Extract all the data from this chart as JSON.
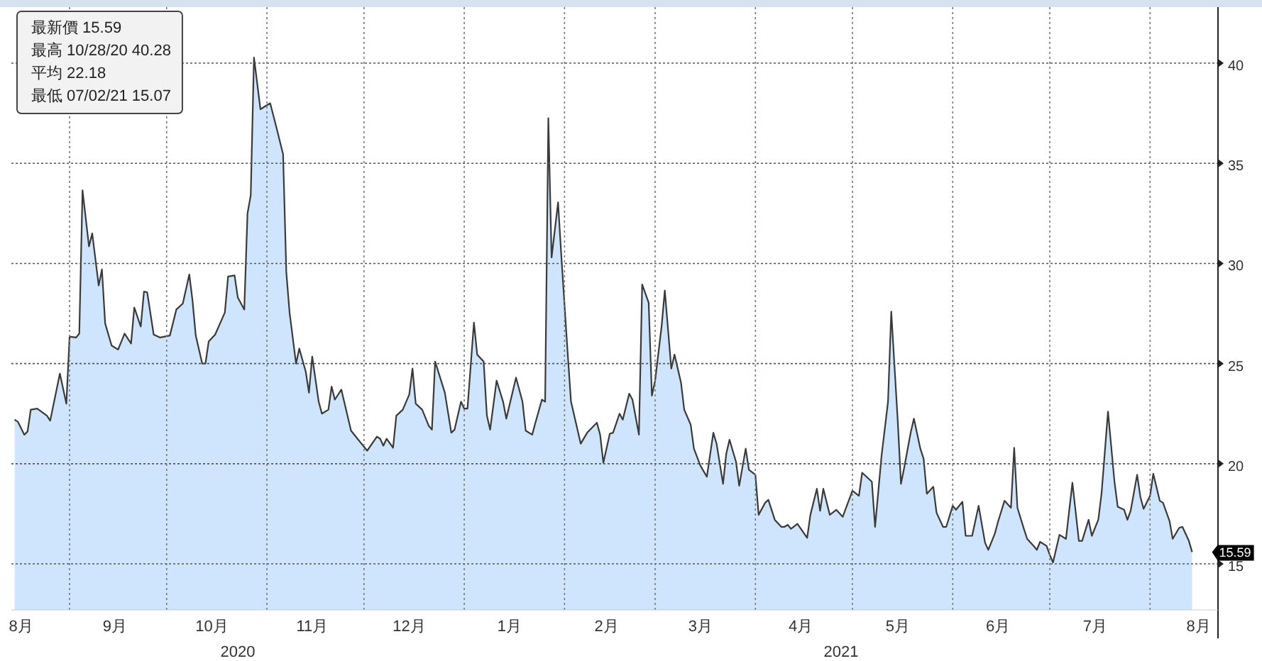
{
  "chart_data": {
    "type": "area",
    "grid": true,
    "xlim": [
      "2020-08-14",
      "2021-08-22"
    ],
    "ylim": [
      12.7,
      42.8
    ],
    "yticks": [
      15,
      20,
      25,
      30,
      35,
      40
    ],
    "xticks": [
      {
        "value": "2020-08-17",
        "label": "8月"
      },
      {
        "value": "2020-09-01",
        "label": null
      },
      {
        "value": "2020-09-15",
        "label": "9月"
      },
      {
        "value": "2020-10-01",
        "label": null
      },
      {
        "value": "2020-10-15",
        "label": "10月"
      },
      {
        "value": "2020-11-01",
        "label": null
      },
      {
        "value": "2020-11-15",
        "label": "11月"
      },
      {
        "value": "2020-12-01",
        "label": null
      },
      {
        "value": "2020-12-15",
        "label": "12月"
      },
      {
        "value": "2021-01-01",
        "label": null
      },
      {
        "value": "2021-01-15",
        "label": "1月"
      },
      {
        "value": "2021-02-01",
        "label": null
      },
      {
        "value": "2021-02-14",
        "label": "2月"
      },
      {
        "value": "2021-03-01",
        "label": null
      },
      {
        "value": "2021-03-15",
        "label": "3月"
      },
      {
        "value": "2021-04-01",
        "label": null
      },
      {
        "value": "2021-04-15",
        "label": "4月"
      },
      {
        "value": "2021-05-01",
        "label": null
      },
      {
        "value": "2021-05-15",
        "label": "5月"
      },
      {
        "value": "2021-06-01",
        "label": null
      },
      {
        "value": "2021-06-15",
        "label": "6月"
      },
      {
        "value": "2021-07-01",
        "label": null
      },
      {
        "value": "2021-07-15",
        "label": "7月"
      },
      {
        "value": "2021-08-01",
        "label": null
      },
      {
        "value": "2021-08-16",
        "label": "8月"
      }
    ],
    "annotations": [
      "最新價 15.59",
      "最高 10/28/20 40.28",
      "平均 22.18",
      "最低 07/02/21 15.07",
      "2020",
      "2021",
      {
        "text": "15.59",
        "x": "2021-08-14",
        "y": 15.59
      }
    ],
    "series": [
      {
        "color": "#cce4fd",
        "x": [
          "2020-08-15",
          "2020-08-16",
          "2020-08-18",
          "2020-08-19",
          "2020-08-20",
          "2020-08-22",
          "2020-08-25",
          "2020-08-26",
          "2020-08-29",
          "2020-08-31",
          "2020-09-01",
          "2020-09-03",
          "2020-09-04",
          "2020-09-05",
          "2020-09-07",
          "2020-09-08",
          "2020-09-10",
          "2020-09-11",
          "2020-09-12",
          "2020-09-14",
          "2020-09-16",
          "2020-09-18",
          "2020-09-20",
          "2020-09-21",
          "2020-09-23",
          "2020-09-24",
          "2020-09-25",
          "2020-09-27",
          "2020-09-29",
          "2020-10-02",
          "2020-10-04",
          "2020-10-06",
          "2020-10-08",
          "2020-10-09",
          "2020-10-10",
          "2020-10-12",
          "2020-10-13",
          "2020-10-14",
          "2020-10-16",
          "2020-10-19",
          "2020-10-20",
          "2020-10-22",
          "2020-10-23",
          "2020-10-25",
          "2020-10-26",
          "2020-10-27",
          "2020-10-28",
          "2020-10-30",
          "2020-11-02",
          "2020-11-04",
          "2020-11-06",
          "2020-11-07",
          "2020-11-08",
          "2020-11-10",
          "2020-11-11",
          "2020-11-13",
          "2020-11-14",
          "2020-11-15",
          "2020-11-17",
          "2020-11-18",
          "2020-11-20",
          "2020-11-21",
          "2020-11-22",
          "2020-11-24",
          "2020-11-27",
          "2020-12-02",
          "2020-12-05",
          "2020-12-06",
          "2020-12-07",
          "2020-12-08",
          "2020-12-10",
          "2020-12-11",
          "2020-12-13",
          "2020-12-15",
          "2020-12-16",
          "2020-12-17",
          "2020-12-19",
          "2020-12-21",
          "2020-12-22",
          "2020-12-23",
          "2020-12-26",
          "2020-12-28",
          "2020-12-29",
          "2020-12-31",
          "2021-01-01",
          "2021-01-02",
          "2021-01-04",
          "2021-01-05",
          "2021-01-07",
          "2021-01-08",
          "2021-01-09",
          "2021-01-11",
          "2021-01-13",
          "2021-01-14",
          "2021-01-17",
          "2021-01-19",
          "2021-01-20",
          "2021-01-22",
          "2021-01-23",
          "2021-01-25",
          "2021-01-26",
          "2021-01-27",
          "2021-01-28",
          "2021-01-30",
          "2021-01-31",
          "2021-02-02",
          "2021-02-03",
          "2021-02-06",
          "2021-02-08",
          "2021-02-11",
          "2021-02-12",
          "2021-02-13",
          "2021-02-15",
          "2021-02-16",
          "2021-02-18",
          "2021-02-19",
          "2021-02-21",
          "2021-02-22",
          "2021-02-24",
          "2021-02-25",
          "2021-02-27",
          "2021-02-28",
          "2021-03-01",
          "2021-03-03",
          "2021-03-04",
          "2021-03-06",
          "2021-03-07",
          "2021-03-09",
          "2021-03-10",
          "2021-03-12",
          "2021-03-13",
          "2021-03-15",
          "2021-03-17",
          "2021-03-19",
          "2021-03-20",
          "2021-03-22",
          "2021-03-23",
          "2021-03-24",
          "2021-03-26",
          "2021-03-27",
          "2021-03-29",
          "2021-03-30",
          "2021-04-01",
          "2021-04-02",
          "2021-04-04",
          "2021-04-05",
          "2021-04-07",
          "2021-04-09",
          "2021-04-10",
          "2021-04-11",
          "2021-04-12",
          "2021-04-14",
          "2021-04-17",
          "2021-04-18",
          "2021-04-20",
          "2021-04-21",
          "2021-04-22",
          "2021-04-24",
          "2021-04-26",
          "2021-04-28",
          "2021-05-01",
          "2021-05-03",
          "2021-05-04",
          "2021-05-07",
          "2021-05-08",
          "2021-05-10",
          "2021-05-12",
          "2021-05-13",
          "2021-05-15",
          "2021-05-16",
          "2021-05-17",
          "2021-05-19",
          "2021-05-20",
          "2021-05-22",
          "2021-05-23",
          "2021-05-24",
          "2021-05-26",
          "2021-05-27",
          "2021-05-29",
          "2021-05-30",
          "2021-06-01",
          "2021-06-02",
          "2021-06-04",
          "2021-06-05",
          "2021-06-07",
          "2021-06-09",
          "2021-06-11",
          "2021-06-12",
          "2021-06-14",
          "2021-06-15",
          "2021-06-17",
          "2021-06-19",
          "2021-06-20",
          "2021-06-21",
          "2021-06-23",
          "2021-06-24",
          "2021-06-26",
          "2021-06-27",
          "2021-06-28",
          "2021-06-30",
          "2021-07-01",
          "2021-07-02",
          "2021-07-04",
          "2021-07-06",
          "2021-07-08",
          "2021-07-10",
          "2021-07-11",
          "2021-07-13",
          "2021-07-14",
          "2021-07-16",
          "2021-07-17",
          "2021-07-19",
          "2021-07-21",
          "2021-07-22",
          "2021-07-24",
          "2021-07-25",
          "2021-07-26",
          "2021-07-28",
          "2021-07-29",
          "2021-07-30",
          "2021-08-01",
          "2021-08-02",
          "2021-08-04",
          "2021-08-05",
          "2021-08-07",
          "2021-08-08",
          "2021-08-10",
          "2021-08-11",
          "2021-08-13",
          "2021-08-14"
        ],
        "values": [
          22.2,
          22.1,
          21.45,
          21.6,
          22.7,
          22.75,
          22.4,
          22.15,
          24.5,
          23.0,
          26.35,
          26.3,
          26.5,
          33.65,
          30.85,
          31.5,
          28.9,
          29.7,
          27.0,
          25.9,
          25.7,
          26.5,
          26.0,
          27.8,
          26.85,
          28.6,
          28.55,
          26.45,
          26.3,
          26.4,
          27.7,
          28.0,
          29.45,
          28.15,
          26.4,
          25.0,
          25.0,
          26.1,
          26.45,
          27.55,
          29.35,
          29.4,
          28.3,
          27.7,
          32.5,
          33.4,
          40.28,
          37.7,
          38.0,
          36.75,
          35.45,
          29.55,
          27.55,
          25.0,
          25.75,
          24.6,
          23.55,
          25.35,
          23.1,
          22.5,
          22.7,
          23.85,
          23.2,
          23.7,
          21.65,
          20.65,
          21.35,
          21.25,
          20.9,
          21.25,
          20.8,
          22.4,
          22.7,
          23.45,
          24.75,
          23.0,
          22.7,
          21.9,
          21.7,
          25.1,
          23.55,
          21.55,
          21.7,
          23.1,
          22.75,
          22.75,
          27.05,
          25.45,
          25.1,
          22.4,
          21.7,
          24.15,
          23.1,
          22.25,
          24.3,
          23.1,
          21.65,
          21.45,
          22.05,
          23.2,
          23.1,
          37.25,
          30.3,
          33.05,
          30.4,
          25.45,
          23.1,
          21.0,
          21.55,
          22.05,
          21.45,
          20.05,
          21.5,
          21.55,
          22.5,
          22.2,
          23.5,
          23.2,
          21.45,
          28.95,
          28.05,
          23.4,
          24.15,
          26.85,
          28.65,
          24.75,
          25.45,
          24.05,
          22.7,
          21.95,
          20.75,
          19.9,
          19.35,
          21.55,
          21.0,
          19.0,
          20.5,
          21.2,
          20.1,
          18.9,
          20.75,
          19.7,
          19.45,
          17.45,
          18.05,
          18.2,
          17.2,
          16.85,
          16.85,
          16.95,
          16.75,
          17.0,
          16.3,
          17.45,
          18.75,
          17.65,
          18.75,
          17.45,
          17.7,
          17.35,
          18.65,
          18.4,
          19.55,
          19.1,
          16.85,
          20.4,
          23.1,
          27.6,
          22.15,
          19.0,
          19.8,
          21.55,
          22.25,
          20.75,
          20.25,
          18.5,
          18.85,
          17.55,
          16.85,
          16.85,
          17.9,
          17.7,
          18.1,
          16.4,
          16.4,
          17.9,
          16.05,
          15.7,
          16.5,
          17.1,
          18.15,
          17.8,
          20.8,
          17.8,
          16.75,
          16.25,
          15.9,
          15.7,
          16.1,
          15.9,
          15.45,
          15.07,
          16.45,
          16.25,
          19.05,
          16.15,
          16.15,
          17.2,
          16.4,
          17.2,
          18.5,
          22.6,
          19.1,
          17.85,
          17.7,
          17.2,
          17.65,
          19.45,
          18.35,
          17.75,
          18.4,
          19.5,
          18.15,
          18.05,
          17.15,
          16.25,
          16.8,
          16.85,
          16.15,
          15.59
        ]
      }
    ]
  }
}
